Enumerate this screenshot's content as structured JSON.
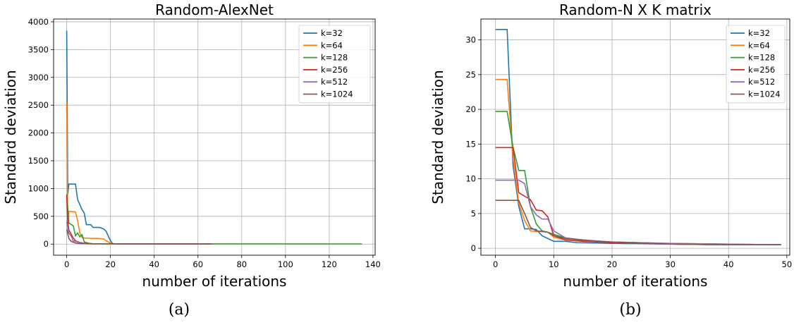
{
  "figure": {
    "captions": [
      "(a)",
      "(b)"
    ]
  },
  "chart_data": [
    {
      "type": "line",
      "title": "Random-AlexNet",
      "xlabel": "number of iterations",
      "ylabel": "Standard deviation",
      "xlim": [
        -6,
        141
      ],
      "ylim": [
        -200,
        4050
      ],
      "xticks": [
        0,
        20,
        40,
        60,
        80,
        100,
        120,
        140
      ],
      "yticks": [
        0,
        500,
        1000,
        1500,
        2000,
        2500,
        3000,
        3500,
        4000
      ],
      "grid": true,
      "legend_position": "top-right",
      "series": [
        {
          "name": "k=32",
          "color": "#1f77b4",
          "points": [
            [
              0,
              3840
            ],
            [
              0.5,
              900
            ],
            [
              1,
              1080
            ],
            [
              4,
              1080
            ],
            [
              5,
              800
            ],
            [
              7,
              620
            ],
            [
              8,
              560
            ],
            [
              9,
              350
            ],
            [
              11,
              350
            ],
            [
              12,
              300
            ],
            [
              15,
              300
            ],
            [
              17,
              270
            ],
            [
              18,
              230
            ],
            [
              20,
              60
            ],
            [
              21,
              10
            ],
            [
              22,
              5
            ],
            [
              67,
              3
            ]
          ]
        },
        {
          "name": "k=64",
          "color": "#ff7f0e",
          "points": [
            [
              0,
              2550
            ],
            [
              0.5,
              200
            ],
            [
              1,
              590
            ],
            [
              4,
              580
            ],
            [
              5,
              420
            ],
            [
              6,
              200
            ],
            [
              7,
              120
            ],
            [
              8,
              110
            ],
            [
              10,
              105
            ],
            [
              15,
              100
            ],
            [
              17,
              90
            ],
            [
              18,
              60
            ],
            [
              20,
              20
            ],
            [
              21,
              5
            ],
            [
              67,
              3
            ]
          ]
        },
        {
          "name": "k=128",
          "color": "#2ca02c",
          "points": [
            [
              0,
              900
            ],
            [
              1,
              380
            ],
            [
              3,
              330
            ],
            [
              4,
              150
            ],
            [
              5,
              200
            ],
            [
              6,
              130
            ],
            [
              7,
              170
            ],
            [
              8,
              40
            ],
            [
              10,
              15
            ],
            [
              12,
              5
            ],
            [
              135,
              3
            ]
          ]
        },
        {
          "name": "k=256",
          "color": "#d62728",
          "points": [
            [
              0,
              880
            ],
            [
              0.5,
              400
            ],
            [
              1,
              250
            ],
            [
              3,
              110
            ],
            [
              4,
              60
            ],
            [
              6,
              30
            ],
            [
              8,
              15
            ],
            [
              10,
              8
            ],
            [
              12,
              5
            ],
            [
              66,
              3
            ]
          ]
        },
        {
          "name": "k=512",
          "color": "#9467bd",
          "points": [
            [
              0,
              400
            ],
            [
              1,
              190
            ],
            [
              2,
              150
            ],
            [
              3,
              60
            ],
            [
              5,
              40
            ],
            [
              7,
              15
            ],
            [
              10,
              5
            ],
            [
              66,
              3
            ]
          ]
        },
        {
          "name": "k=1024",
          "color": "#8c564b",
          "points": [
            [
              0,
              260
            ],
            [
              1,
              100
            ],
            [
              2,
              50
            ],
            [
              4,
              20
            ],
            [
              6,
              10
            ],
            [
              10,
              5
            ],
            [
              66,
              3
            ]
          ]
        }
      ]
    },
    {
      "type": "line",
      "title": "Random-N X K matrix",
      "xlabel": "number of iterations",
      "ylabel": "Standard deviation",
      "xlim": [
        -2.5,
        50.5
      ],
      "ylim": [
        -1,
        33
      ],
      "xticks": [
        0,
        10,
        20,
        30,
        40,
        50
      ],
      "yticks": [
        0,
        5,
        10,
        15,
        20,
        25,
        30
      ],
      "grid": true,
      "legend_position": "top-right",
      "series": [
        {
          "name": "k=32",
          "color": "#1f77b4",
          "points": [
            [
              0,
              31.5
            ],
            [
              2,
              31.5
            ],
            [
              3,
              12
            ],
            [
              4,
              6
            ],
            [
              5,
              2.8
            ],
            [
              6,
              2.8
            ],
            [
              7,
              2.7
            ],
            [
              8,
              1.8
            ],
            [
              9,
              1.4
            ],
            [
              10,
              1
            ],
            [
              12,
              1
            ],
            [
              14,
              0.8
            ],
            [
              20,
              0.7
            ],
            [
              30,
              0.6
            ],
            [
              40,
              0.5
            ],
            [
              49,
              0.5
            ]
          ]
        },
        {
          "name": "k=64",
          "color": "#ff7f0e",
          "points": [
            [
              0,
              24.3
            ],
            [
              2,
              24.3
            ],
            [
              3,
              13
            ],
            [
              4,
              6.5
            ],
            [
              5,
              4
            ],
            [
              6,
              2.5
            ],
            [
              7,
              2.4
            ],
            [
              8,
              2.5
            ],
            [
              9,
              2.3
            ],
            [
              10,
              1.6
            ],
            [
              12,
              1.2
            ],
            [
              15,
              1
            ],
            [
              20,
              0.9
            ],
            [
              25,
              0.8
            ],
            [
              30,
              0.6
            ],
            [
              40,
              0.5
            ],
            [
              49,
              0.5
            ]
          ]
        },
        {
          "name": "k=128",
          "color": "#2ca02c",
          "points": [
            [
              0,
              19.7
            ],
            [
              2,
              19.7
            ],
            [
              3,
              14.6
            ],
            [
              4,
              11.2
            ],
            [
              5,
              11.2
            ],
            [
              6,
              6
            ],
            [
              7,
              3.5
            ],
            [
              8,
              2.5
            ],
            [
              9,
              2.3
            ],
            [
              10,
              2
            ],
            [
              12,
              1.5
            ],
            [
              15,
              1.1
            ],
            [
              20,
              0.9
            ],
            [
              30,
              0.7
            ],
            [
              40,
              0.6
            ],
            [
              49,
              0.5
            ]
          ]
        },
        {
          "name": "k=256",
          "color": "#d62728",
          "points": [
            [
              0,
              14.5
            ],
            [
              3,
              14.5
            ],
            [
              4,
              8
            ],
            [
              5,
              7.5
            ],
            [
              6,
              7
            ],
            [
              7,
              5.5
            ],
            [
              8,
              5.4
            ],
            [
              9,
              4.5
            ],
            [
              10,
              1.8
            ],
            [
              12,
              1.2
            ],
            [
              15,
              1
            ],
            [
              20,
              0.8
            ],
            [
              30,
              0.6
            ],
            [
              40,
              0.5
            ],
            [
              49,
              0.5
            ]
          ]
        },
        {
          "name": "k=512",
          "color": "#9467bd",
          "points": [
            [
              0,
              9.8
            ],
            [
              4,
              9.8
            ],
            [
              5,
              9.3
            ],
            [
              6,
              6
            ],
            [
              7,
              4.8
            ],
            [
              8,
              4.2
            ],
            [
              9,
              4.2
            ],
            [
              10,
              2.5
            ],
            [
              11,
              2
            ],
            [
              12,
              1.5
            ],
            [
              14,
              1.3
            ],
            [
              16,
              1.1
            ],
            [
              20,
              0.9
            ],
            [
              30,
              0.7
            ],
            [
              40,
              0.6
            ],
            [
              49,
              0.5
            ]
          ]
        },
        {
          "name": "k=1024",
          "color": "#8c564b",
          "points": [
            [
              0,
              6.9
            ],
            [
              4,
              6.9
            ],
            [
              5,
              5
            ],
            [
              6,
              3
            ],
            [
              7,
              2.5
            ],
            [
              8,
              2.4
            ],
            [
              9,
              2.3
            ],
            [
              10,
              1.8
            ],
            [
              12,
              1.4
            ],
            [
              15,
              1.2
            ],
            [
              20,
              0.9
            ],
            [
              30,
              0.6
            ],
            [
              40,
              0.5
            ],
            [
              49,
              0.5
            ]
          ]
        }
      ]
    }
  ]
}
